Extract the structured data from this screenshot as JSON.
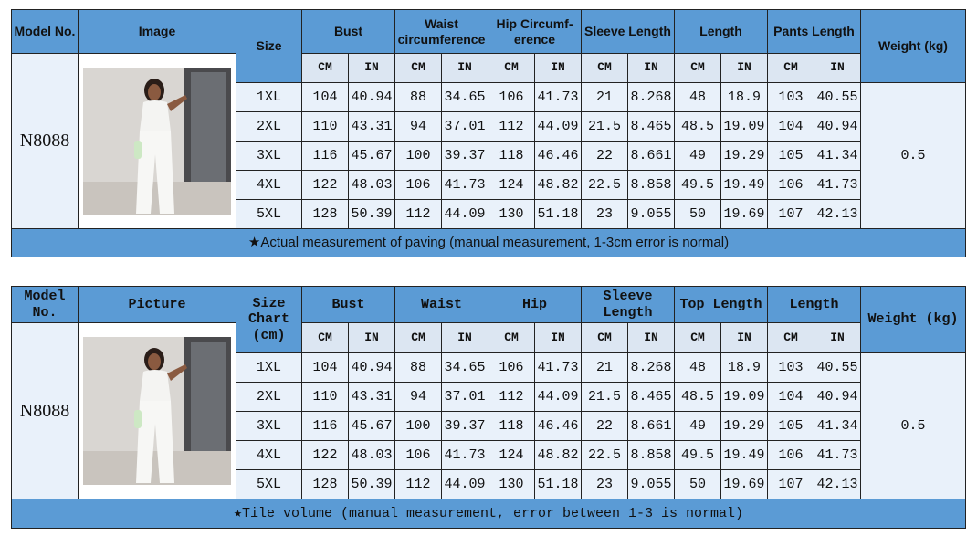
{
  "tables": [
    {
      "headers": {
        "model": "Model No.",
        "image": "Image",
        "size": "Size",
        "groups": [
          "Bust",
          "Waist circumference",
          "Hip Circumf-\nerence",
          "Sleeve Length",
          "Length",
          "Pants Length"
        ],
        "weight": "Weight (kg)"
      },
      "units": [
        "CM",
        "IN"
      ],
      "model_no": "N8088",
      "rows": [
        [
          "1XL",
          104,
          40.94,
          88,
          34.65,
          106,
          41.73,
          21,
          8.268,
          48,
          18.9,
          103,
          40.55
        ],
        [
          "2XL",
          110,
          43.31,
          94,
          37.01,
          112,
          44.09,
          21.5,
          8.465,
          48.5,
          19.09,
          104,
          40.94
        ],
        [
          "3XL",
          116,
          45.67,
          100,
          39.37,
          118,
          46.46,
          22,
          8.661,
          49,
          19.29,
          105,
          41.34
        ],
        [
          "4XL",
          122,
          48.03,
          106,
          41.73,
          124,
          48.82,
          22.5,
          8.858,
          49.5,
          19.49,
          106,
          41.73
        ],
        [
          "5XL",
          128,
          50.39,
          112,
          44.09,
          130,
          51.18,
          23,
          9.055,
          50,
          19.69,
          107,
          42.13
        ]
      ],
      "weight": 0.5,
      "note": "★Actual measurement of paving (manual measurement, 1-3cm error is normal)"
    },
    {
      "headers": {
        "model": "Model No.",
        "image": "Picture",
        "size": "Size\nChart\n(cm)",
        "groups": [
          "Bust",
          "Waist",
          "Hip",
          "Sleeve\nLength",
          "Top Length",
          "Length"
        ],
        "weight": "Weight (kg)"
      },
      "units": [
        "CM",
        "IN"
      ],
      "model_no": "N8088",
      "rows": [
        [
          "1XL",
          104,
          40.94,
          88,
          34.65,
          106,
          41.73,
          21,
          8.268,
          48,
          18.9,
          103,
          40.55
        ],
        [
          "2XL",
          110,
          43.31,
          94,
          37.01,
          112,
          44.09,
          21.5,
          8.465,
          48.5,
          19.09,
          104,
          40.94
        ],
        [
          "3XL",
          116,
          45.67,
          100,
          39.37,
          118,
          46.46,
          22,
          8.661,
          49,
          19.29,
          105,
          41.34
        ],
        [
          "4XL",
          122,
          48.03,
          106,
          41.73,
          124,
          48.82,
          22.5,
          8.858,
          49.5,
          19.49,
          106,
          41.73
        ],
        [
          "5XL",
          128,
          50.39,
          112,
          44.09,
          130,
          51.18,
          23,
          9.055,
          50,
          19.69,
          107,
          42.13
        ]
      ],
      "weight": 0.5,
      "note": "★Tile volume (manual measurement, error between 1-3 is normal)"
    }
  ]
}
